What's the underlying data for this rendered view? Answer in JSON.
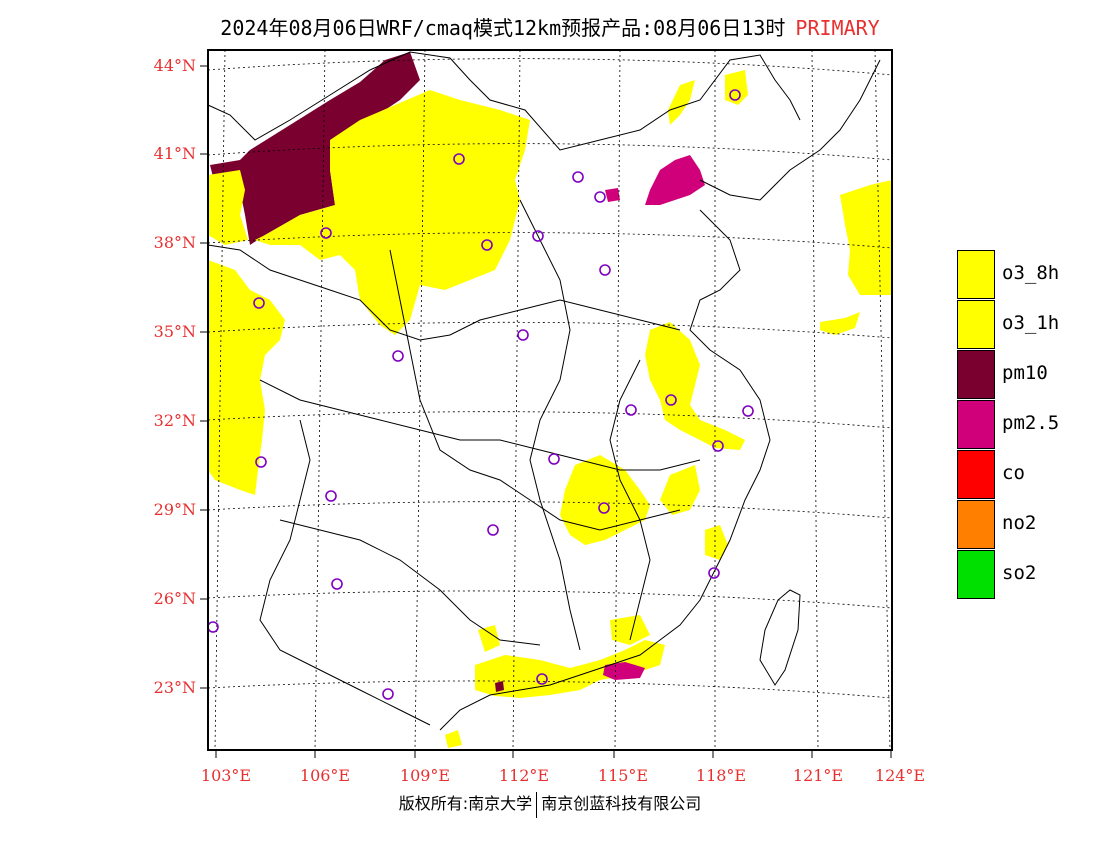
{
  "title": {
    "main": "2024年08月06日WRF/cmaq模式12km预报产品:08月06日13时",
    "tag": "PRIMARY"
  },
  "axes": {
    "lat_labels": [
      "44°N",
      "41°N",
      "38°N",
      "35°N",
      "32°N",
      "29°N",
      "26°N",
      "23°N"
    ],
    "lon_labels": [
      "103°E",
      "106°E",
      "109°E",
      "112°E",
      "115°E",
      "118°E",
      "121°E",
      "124°E"
    ],
    "label_color": "#e83030"
  },
  "legend": [
    {
      "label": "o3_8h",
      "color": "#ffff00"
    },
    {
      "label": "o3_1h",
      "color": "#ffff00"
    },
    {
      "label": "pm10",
      "color": "#7a0030"
    },
    {
      "label": "pm2.5",
      "color": "#d0007a"
    },
    {
      "label": "co",
      "color": "#ff0000"
    },
    {
      "label": "no2",
      "color": "#ff8000"
    },
    {
      "label": "so2",
      "color": "#00e000"
    }
  ],
  "footer": {
    "left": "版权所有:南京大学",
    "right": "南京创蓝科技有限公司"
  },
  "colors": {
    "o3": "#ffff00",
    "pm10": "#7a0030",
    "pm25": "#d0007a",
    "station": "#8000c0"
  }
}
